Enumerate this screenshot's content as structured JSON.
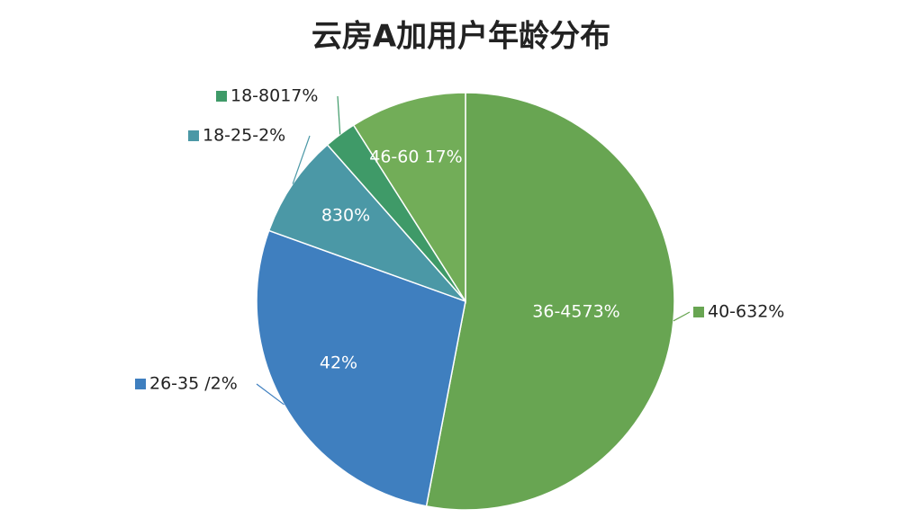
{
  "chart_data": {
    "type": "pie",
    "title": "云房A加用户年龄分布",
    "categories": [
      "40-632%",
      "26-35 /2%",
      "18-25-2%",
      "18-8017%",
      null
    ],
    "values": [
      53,
      27.5,
      8,
      2.5,
      9
    ],
    "labels": [
      "36-4573%",
      "42%",
      "830%",
      null,
      "46-60 17%"
    ],
    "colors": [
      "#68a552",
      "#3f7fbf",
      "#4b98a6",
      "#3f9a68",
      "#72ad58"
    ]
  }
}
